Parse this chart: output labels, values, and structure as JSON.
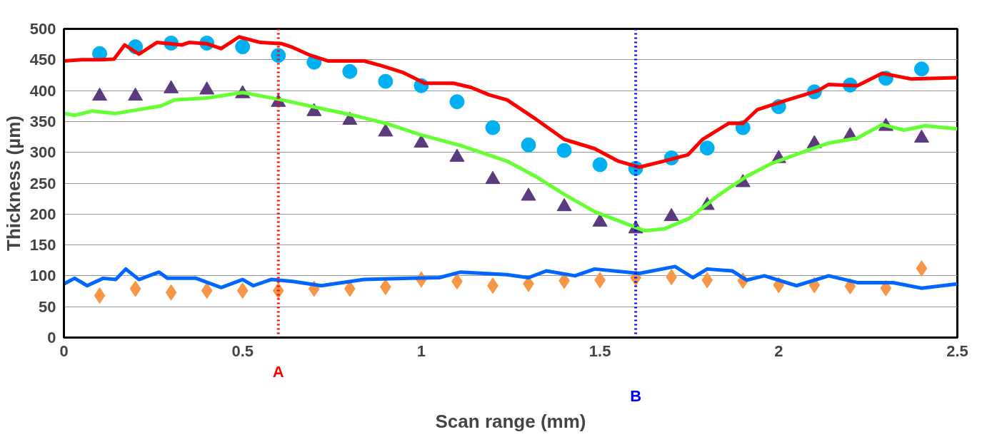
{
  "chart_data": {
    "type": "line",
    "xlabel": "Scan range (mm)",
    "ylabel": "Thickness (µm)",
    "xlim": [
      0,
      2.5
    ],
    "xticks": [
      0,
      0.5,
      1,
      1.5,
      2,
      2.5
    ],
    "ylim": [
      0,
      500
    ],
    "yticks": [
      0,
      50,
      100,
      150,
      200,
      250,
      300,
      350,
      400,
      450,
      500
    ],
    "grid": "y",
    "series": [
      {
        "color": "#ff0000",
        "x": [
          0,
          0.05,
          0.1,
          0.14,
          0.17,
          0.21,
          0.26,
          0.33,
          0.35,
          0.4,
          0.44,
          0.49,
          0.55,
          0.61,
          0.64,
          0.69,
          0.74,
          0.84,
          0.89,
          0.95,
          1.01,
          1.09,
          1.14,
          1.19,
          1.24,
          1.32,
          1.4,
          1.485,
          1.55,
          1.61,
          1.68,
          1.746,
          1.787,
          1.86,
          1.9,
          1.94,
          2.025,
          2.11,
          2.14,
          2.22,
          2.29,
          2.37,
          2.5
        ],
        "values": [
          448,
          450,
          450,
          451,
          474,
          459,
          478,
          474,
          478,
          476,
          468,
          487,
          478,
          476,
          470,
          457,
          448,
          448,
          440,
          429,
          412,
          412,
          405,
          393,
          385,
          354,
          321,
          306,
          286,
          276,
          286,
          296,
          321,
          347,
          347,
          369,
          385,
          400,
          410,
          408,
          428,
          419,
          421
        ]
      },
      {
        "color": "#66ff33",
        "x": [
          0,
          0.03,
          0.08,
          0.145,
          0.27,
          0.31,
          0.4,
          0.5,
          0.61,
          0.72,
          0.81,
          0.9,
          1.0,
          1.11,
          1.239,
          1.32,
          1.4,
          1.485,
          1.566,
          1.625,
          1.68,
          1.75,
          1.83,
          1.91,
          1.98,
          2.06,
          2.14,
          2.22,
          2.29,
          2.35,
          2.41,
          2.5
        ],
        "values": [
          363,
          360,
          367,
          363,
          375,
          385,
          388,
          397,
          385,
          371,
          360,
          347,
          328,
          311,
          286,
          261,
          232,
          204,
          186,
          173,
          176,
          193,
          230,
          261,
          282,
          299,
          315,
          323,
          345,
          336,
          343,
          338
        ]
      },
      {
        "color": "#0066ff",
        "x": [
          0,
          0.03,
          0.065,
          0.11,
          0.145,
          0.173,
          0.21,
          0.266,
          0.29,
          0.37,
          0.44,
          0.5,
          0.53,
          0.58,
          0.64,
          0.72,
          0.84,
          0.97,
          1.05,
          1.11,
          1.239,
          1.3,
          1.35,
          1.43,
          1.485,
          1.61,
          1.71,
          1.76,
          1.8,
          1.87,
          1.91,
          1.96,
          2.05,
          2.14,
          2.22,
          2.32,
          2.4,
          2.5
        ],
        "values": [
          87,
          96,
          84,
          96,
          94,
          111,
          94,
          106,
          96,
          96,
          81,
          94,
          84,
          94,
          91,
          84,
          94,
          96,
          97,
          106,
          102,
          97,
          108,
          100,
          111,
          104,
          115,
          97,
          111,
          108,
          93,
          100,
          84,
          100,
          89,
          89,
          80,
          87
        ]
      },
      {
        "type": "scatter",
        "marker": "circle",
        "color": "#00b0f0",
        "x": [
          0.1,
          0.2,
          0.3,
          0.4,
          0.5,
          0.6,
          0.7,
          0.8,
          0.9,
          1.0,
          1.1,
          1.2,
          1.3,
          1.4,
          1.5,
          1.6,
          1.7,
          1.8,
          1.9,
          2.0,
          2.1,
          2.2,
          2.3,
          2.4
        ],
        "values": [
          460,
          471,
          477,
          477,
          471,
          457,
          446,
          431,
          415,
          408,
          382,
          340,
          312,
          303,
          280,
          274,
          291,
          307,
          340,
          374,
          398,
          409,
          420,
          435
        ]
      },
      {
        "type": "scatter",
        "marker": "triangle",
        "color": "#5c3a7e",
        "x": [
          0.1,
          0.2,
          0.3,
          0.4,
          0.5,
          0.6,
          0.7,
          0.8,
          0.9,
          1.0,
          1.1,
          1.2,
          1.3,
          1.4,
          1.5,
          1.6,
          1.7,
          1.8,
          1.9,
          2.0,
          2.1,
          2.2,
          2.3,
          2.4
        ],
        "values": [
          391,
          391,
          403,
          401,
          395,
          381,
          366,
          352,
          333,
          315,
          292,
          256,
          229,
          212,
          187,
          176,
          196,
          214,
          251,
          290,
          314,
          327,
          342,
          323
        ]
      },
      {
        "type": "scatter",
        "marker": "diamond",
        "color": "#f79646",
        "x": [
          0.1,
          0.2,
          0.3,
          0.4,
          0.5,
          0.6,
          0.7,
          0.8,
          0.9,
          1.0,
          1.1,
          1.2,
          1.3,
          1.4,
          1.5,
          1.6,
          1.7,
          1.8,
          1.9,
          2.0,
          2.1,
          2.2,
          2.3,
          2.4
        ],
        "values": [
          68,
          79,
          73,
          76,
          76,
          76,
          79,
          79,
          82,
          94,
          91,
          84,
          87,
          92,
          93,
          97,
          98,
          93,
          92,
          85,
          85,
          83,
          80,
          112
        ]
      }
    ],
    "ref_lines": [
      {
        "axis": "x",
        "value": 0.6,
        "label": "A",
        "color": "#ff0000",
        "line_style": "dotted"
      },
      {
        "axis": "x",
        "value": 1.6,
        "label": "B",
        "color": "#0000ff",
        "line_style": "dotted"
      }
    ]
  }
}
